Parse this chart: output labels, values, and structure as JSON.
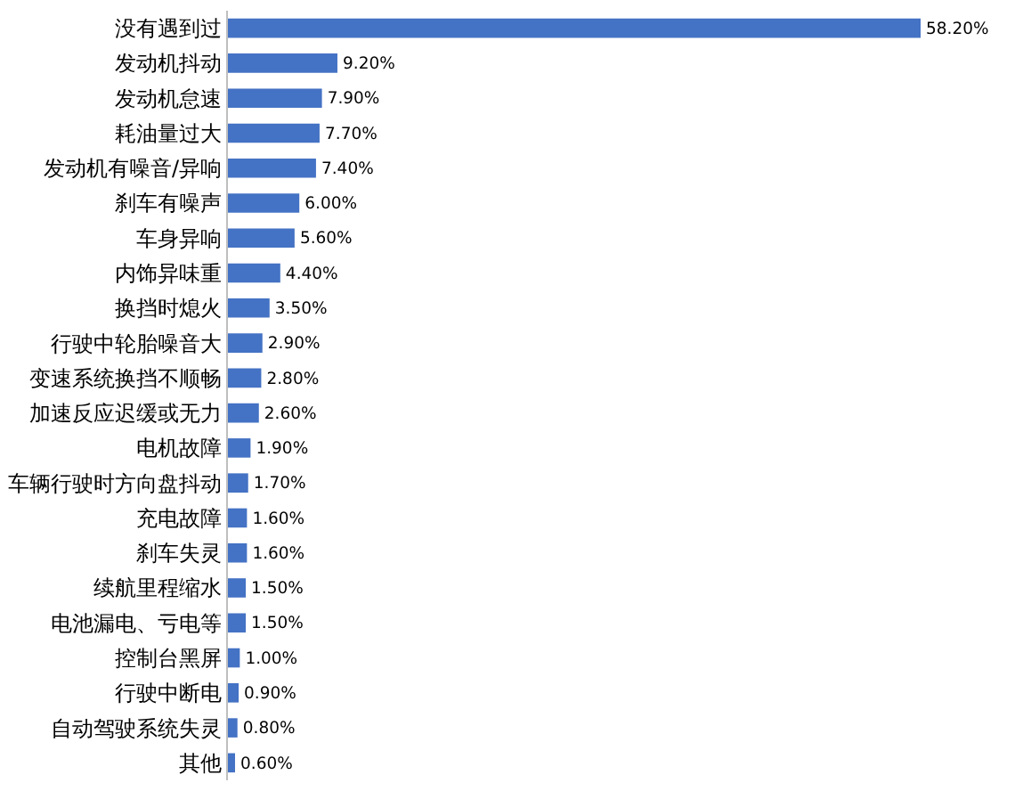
{
  "chart_data": {
    "type": "bar",
    "orientation": "horizontal",
    "color": "#4472c4",
    "categories": [
      "没有遇到过",
      "发动机抖动",
      "发动机怠速",
      "耗油量过大",
      "发动机有噪音/异响",
      "刹车有噪声",
      "车身异响",
      "内饰异味重",
      "换挡时熄火",
      "行驶中轮胎噪音大",
      "变速系统换挡不顺畅",
      "加速反应迟缓或无力",
      "电机故障",
      "车辆行驶时方向盘抖动",
      "充电故障",
      "刹车失灵",
      "续航里程缩水",
      "电池漏电、亏电等",
      "控制台黑屏",
      "行驶中断电",
      "自动驾驶系统失灵",
      "其他"
    ],
    "values": [
      58.2,
      9.2,
      7.9,
      7.7,
      7.4,
      6.0,
      5.6,
      4.4,
      3.5,
      2.9,
      2.8,
      2.6,
      1.9,
      1.7,
      1.6,
      1.6,
      1.5,
      1.5,
      1.0,
      0.9,
      0.8,
      0.6
    ],
    "value_labels": [
      "58.20%",
      "9.20%",
      "7.90%",
      "7.70%",
      "7.40%",
      "6.00%",
      "5.60%",
      "4.40%",
      "3.50%",
      "2.90%",
      "2.80%",
      "2.60%",
      "1.90%",
      "1.70%",
      "1.60%",
      "1.60%",
      "1.50%",
      "1.50%",
      "1.00%",
      "0.90%",
      "0.80%",
      "0.60%"
    ]
  }
}
